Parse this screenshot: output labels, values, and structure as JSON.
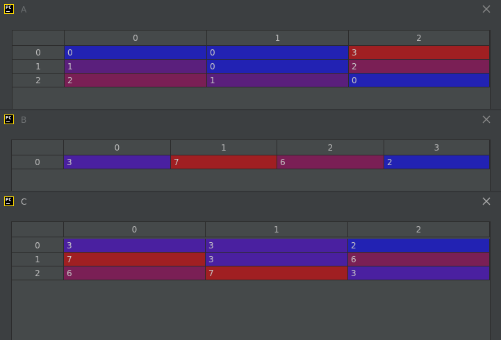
{
  "windows": [
    {
      "title": "A",
      "columns": [
        "0",
        "1",
        "2"
      ],
      "rows": [
        {
          "index": "0",
          "cells": [
            "0",
            "0",
            "3"
          ],
          "colors": [
            "#2222b3",
            "#2222b3",
            "#a01f22"
          ]
        },
        {
          "index": "1",
          "cells": [
            "1",
            "0",
            "2"
          ],
          "colors": [
            "#5a1f7c",
            "#2222b3",
            "#7a1f55"
          ]
        },
        {
          "index": "2",
          "cells": [
            "2",
            "1",
            "0"
          ],
          "colors": [
            "#7a1f55",
            "#5a1f7c",
            "#2222b3"
          ]
        }
      ]
    },
    {
      "title": "B",
      "columns": [
        "0",
        "1",
        "2",
        "3"
      ],
      "rows": [
        {
          "index": "0",
          "cells": [
            "3",
            "7",
            "6",
            "2"
          ],
          "colors": [
            "#4a20a0",
            "#a01f22",
            "#7a1f55",
            "#2222b3"
          ]
        }
      ]
    },
    {
      "title": "C",
      "columns": [
        "0",
        "1",
        "2"
      ],
      "rows": [
        {
          "index": "0",
          "cells": [
            "3",
            "3",
            "2"
          ],
          "colors": [
            "#4a20a0",
            "#4a20a0",
            "#2222b3"
          ]
        },
        {
          "index": "1",
          "cells": [
            "7",
            "3",
            "6"
          ],
          "colors": [
            "#a01f22",
            "#4a20a0",
            "#7a1f55"
          ]
        },
        {
          "index": "2",
          "cells": [
            "6",
            "7",
            "3"
          ],
          "colors": [
            "#7a1f55",
            "#a01f22",
            "#4a20a0"
          ]
        }
      ]
    }
  ]
}
